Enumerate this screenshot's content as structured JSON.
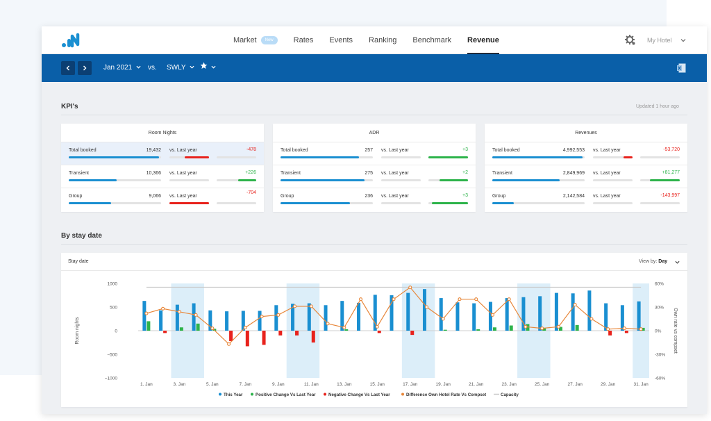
{
  "nav": {
    "items": [
      {
        "label": "Market",
        "badge": "New",
        "active": false
      },
      {
        "label": "Rates",
        "active": false
      },
      {
        "label": "Events",
        "active": false
      },
      {
        "label": "Ranking",
        "active": false
      },
      {
        "label": "Benchmark",
        "active": false
      },
      {
        "label": "Revenue",
        "active": true
      }
    ],
    "hotel": "My Hotel",
    "icons": {
      "settings": "gear-icon",
      "hotel_menu": "chevron-down-icon",
      "logo": "brand-logo"
    }
  },
  "toolbar": {
    "period": "Jan 2021",
    "vs": "vs.",
    "compare": "SWLY",
    "icons": {
      "prev": "chevron-left-icon",
      "next": "chevron-right-icon",
      "favorite": "star-icon",
      "export": "excel-icon"
    }
  },
  "kpis": {
    "title": "KPI's",
    "updated": "Updated 1 hour ago",
    "cards": [
      {
        "title": "Room Nights",
        "rows": [
          {
            "label": "Total booked",
            "value": "19,432",
            "fraction": 0.98,
            "vs_label": "vs. Last year",
            "vs_fraction": 0.62,
            "diff": "-478",
            "diff_fraction": 0.0,
            "sign": "neg",
            "highlight": true
          },
          {
            "label": "Transient",
            "value": "10,366",
            "fraction": 0.52,
            "vs_label": "vs. Last year",
            "vs_fraction": 0.0,
            "diff": "+226",
            "diff_fraction": 0.45,
            "sign": "pos",
            "highlight": false
          },
          {
            "label": "Group",
            "value": "9,066",
            "fraction": 0.46,
            "vs_label": "vs. Last year",
            "vs_fraction": 1.0,
            "diff": "-704",
            "diff_fraction": 0.0,
            "sign": "neg",
            "highlight": false
          }
        ]
      },
      {
        "title": "ADR",
        "rows": [
          {
            "label": "Total booked",
            "value": "257",
            "fraction": 0.85,
            "vs_label": "vs. Last year",
            "vs_fraction": 0.0,
            "diff": "+3",
            "diff_fraction": 1.0,
            "sign": "pos",
            "highlight": false
          },
          {
            "label": "Transient",
            "value": "275",
            "fraction": 0.91,
            "vs_label": "vs. Last year",
            "vs_fraction": 0.0,
            "diff": "+2",
            "diff_fraction": 0.72,
            "sign": "pos",
            "highlight": false
          },
          {
            "label": "Group",
            "value": "236",
            "fraction": 0.75,
            "vs_label": "vs. Last year",
            "vs_fraction": 0.0,
            "diff": "+3",
            "diff_fraction": 0.92,
            "sign": "pos",
            "highlight": false
          }
        ]
      },
      {
        "title": "Revenues",
        "rows": [
          {
            "label": "Total booked",
            "value": "4,992,553",
            "fraction": 0.98,
            "vs_label": "vs. Last year",
            "vs_fraction": 0.22,
            "diff": "-53,720",
            "diff_fraction": 0.0,
            "sign": "neg",
            "highlight": false
          },
          {
            "label": "Transient",
            "value": "2,849,969",
            "fraction": 0.73,
            "vs_label": "vs. Last year",
            "vs_fraction": 0.0,
            "diff": "+81,277",
            "diff_fraction": 0.76,
            "sign": "pos",
            "highlight": false
          },
          {
            "label": "Group",
            "value": "2,142,584",
            "fraction": 0.23,
            "vs_label": "vs. Last year",
            "vs_fraction": 0.0,
            "diff": "-143,997",
            "diff_fraction": 0.0,
            "sign": "neg",
            "highlight": false
          }
        ]
      }
    ]
  },
  "stay": {
    "title": "By stay date",
    "card_title": "Stay date",
    "view_by_label": "View by:",
    "view_by_value": "Day"
  },
  "colors": {
    "brand": "#0a5fa8",
    "bar": "#1a8fd1",
    "positive": "#2db34a",
    "negative": "#e8221c",
    "line": "#e8873a",
    "capacity": "#c8c8c8",
    "weekend_band": "#dceef9"
  },
  "chart_data": {
    "type": "bar",
    "x": [
      1,
      2,
      3,
      4,
      5,
      6,
      7,
      8,
      9,
      10,
      11,
      12,
      13,
      14,
      15,
      16,
      17,
      18,
      19,
      20,
      21,
      22,
      23,
      24,
      25,
      26,
      27,
      28,
      29,
      30,
      31
    ],
    "xticks": [
      "1. Jan",
      "3. Jan",
      "5. Jan",
      "7. Jan",
      "9. Jan",
      "11. Jan",
      "13. Jan",
      "15. Jan",
      "17. Jan",
      "19. Jan",
      "21. Jan",
      "23. Jan",
      "25. Jan",
      "27. Jan",
      "29. Jan",
      "31. Jan"
    ],
    "ylim": [
      -1000,
      1000
    ],
    "yticks": [
      "1000",
      "500",
      "0",
      "−500",
      "−1000"
    ],
    "y2lim": [
      -60,
      60
    ],
    "y2ticks": [
      "60%",
      "30%",
      "0%",
      "-30%",
      "-60%"
    ],
    "ylabel": "Room nights",
    "y2label": "Own rate vs compset",
    "weekends": [
      [
        3,
        4
      ],
      [
        10,
        11
      ],
      [
        17,
        18
      ],
      [
        24,
        25
      ],
      [
        31,
        31
      ]
    ],
    "series": [
      {
        "name": "This Year",
        "values": [
          630,
          430,
          550,
          580,
          430,
          410,
          420,
          420,
          540,
          570,
          580,
          540,
          630,
          590,
          760,
          750,
          800,
          880,
          690,
          600,
          580,
          610,
          690,
          710,
          730,
          800,
          790,
          850,
          580,
          540,
          620
        ]
      },
      {
        "name": "Positive Change Vs Last Year",
        "values": [
          200,
          0,
          70,
          150,
          40,
          0,
          0,
          0,
          0,
          0,
          0,
          0,
          30,
          0,
          0,
          0,
          0,
          0,
          20,
          0,
          30,
          70,
          110,
          140,
          50,
          80,
          120,
          0,
          0,
          0,
          60
        ]
      },
      {
        "name": "Negative Change Vs Last Year",
        "values": [
          0,
          -50,
          0,
          0,
          0,
          -220,
          -330,
          -300,
          -100,
          -100,
          -250,
          0,
          0,
          0,
          -50,
          0,
          -90,
          0,
          0,
          0,
          0,
          0,
          0,
          0,
          0,
          0,
          0,
          0,
          -100,
          -50,
          0
        ]
      },
      {
        "name": "Difference Own Hotel Rate Vs Compset",
        "values": [
          22,
          28,
          24,
          20,
          3,
          -17,
          4,
          18,
          20,
          31,
          31,
          9,
          4,
          40,
          5,
          40,
          55,
          30,
          15,
          40,
          40,
          20,
          40,
          5,
          3,
          5,
          33,
          15,
          2,
          3,
          2
        ]
      },
      {
        "name": "Capacity",
        "values": [
          920,
          920,
          920,
          920,
          920,
          920,
          920,
          920,
          920,
          920,
          920,
          920,
          920,
          920,
          920,
          920,
          920,
          920,
          920,
          920,
          920,
          920,
          920,
          920,
          920,
          920,
          920,
          920,
          920,
          920,
          920
        ]
      }
    ]
  }
}
